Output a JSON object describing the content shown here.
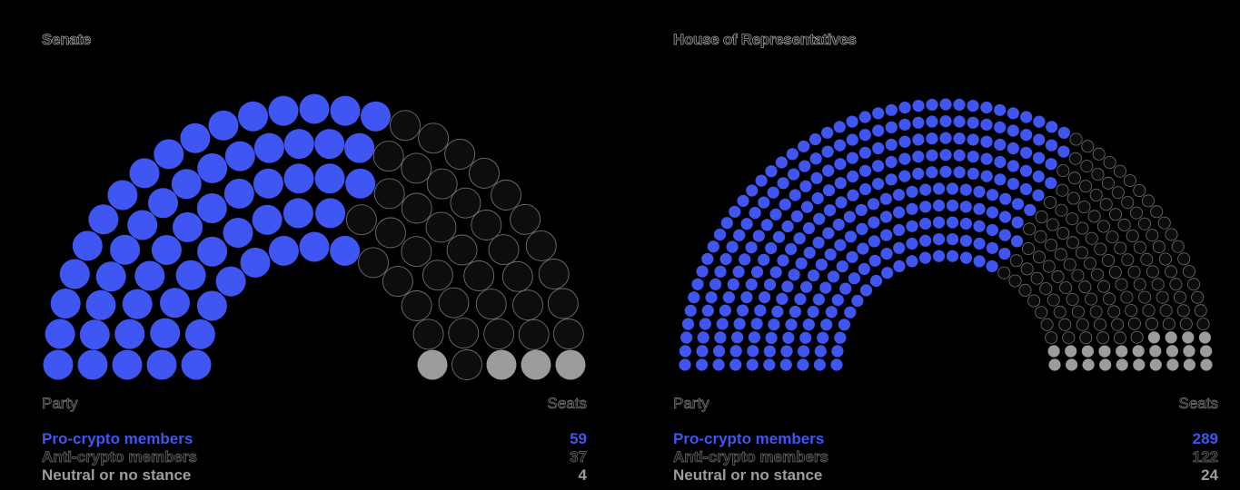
{
  "colors": {
    "pro": "#3f56f2",
    "anti": "#0d0d0d",
    "anti_outline": "#6f6f6f",
    "neutral": "#9a9d9b"
  },
  "chart_data": [
    {
      "type": "parliament",
      "title": "Senate",
      "header_party": "Party",
      "header_seats": "Seats",
      "series": [
        {
          "name": "Pro-crypto members",
          "value": 59,
          "label": "59",
          "color": "#3f56f2"
        },
        {
          "name": "Anti-crypto members",
          "value": 37,
          "label": "37",
          "color": "#0d0d0d"
        },
        {
          "name": "Neutral or no stance",
          "value": 4,
          "label": "4",
          "color": "#9a9d9b"
        }
      ],
      "total": 100
    },
    {
      "type": "parliament",
      "title": "House of Representatives",
      "header_party": "Party",
      "header_seats": "Seats",
      "series": [
        {
          "name": "Pro-crypto members",
          "value": 289,
          "label": "289",
          "color": "#3f56f2"
        },
        {
          "name": "Anti-crypto members",
          "value": 122,
          "label": "122",
          "color": "#0d0d0d"
        },
        {
          "name": "Neutral or no stance",
          "value": 24,
          "label": "24",
          "color": "#9a9d9b"
        }
      ],
      "total": 435
    }
  ]
}
